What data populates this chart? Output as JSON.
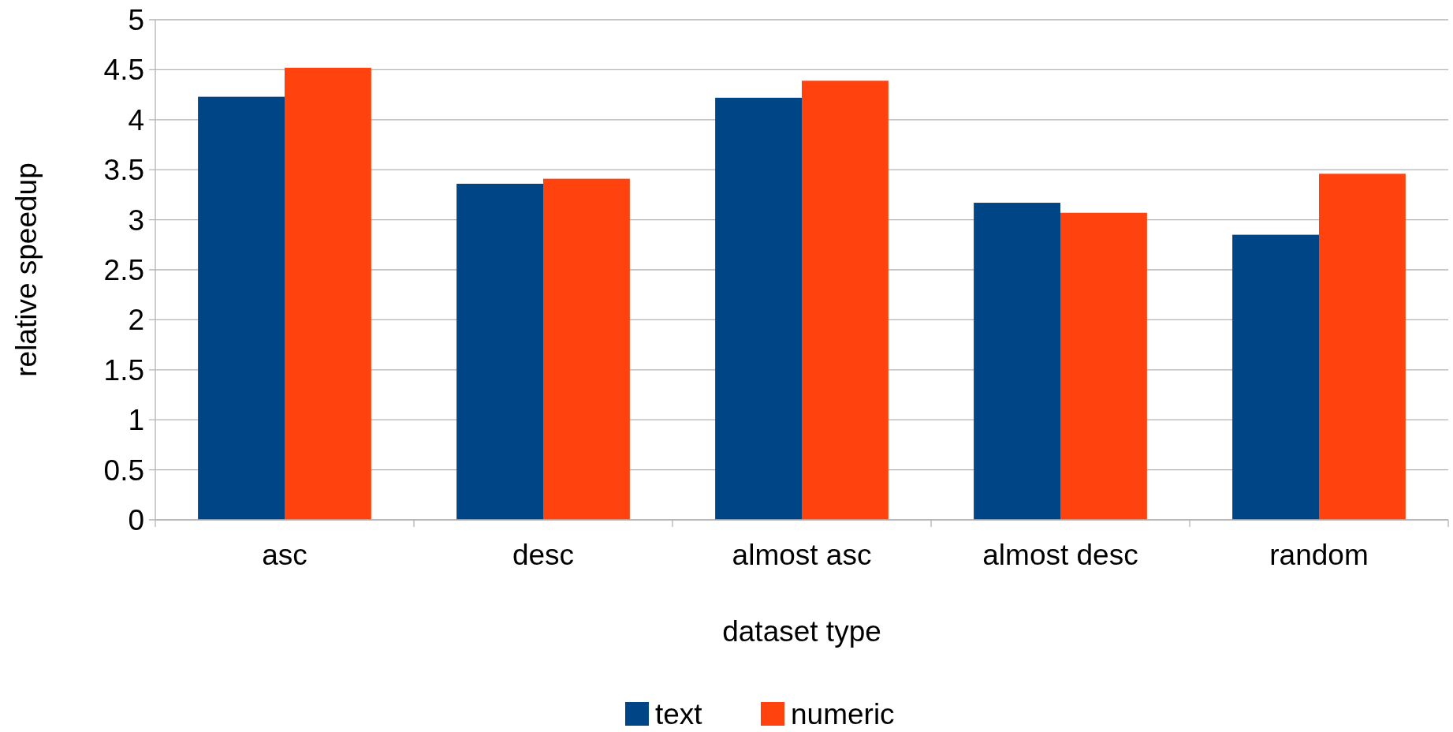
{
  "chart_data": {
    "type": "bar",
    "xlabel": "dataset type",
    "ylabel": "relative speedup",
    "categories": [
      "asc",
      "desc",
      "almost asc",
      "almost desc",
      "random"
    ],
    "series": [
      {
        "name": "text",
        "color": "#004586",
        "values": [
          4.23,
          3.36,
          4.22,
          3.17,
          2.85
        ]
      },
      {
        "name": "numeric",
        "color": "#ff420e",
        "values": [
          4.52,
          3.41,
          4.39,
          3.07,
          3.46
        ]
      }
    ],
    "ylim": [
      0,
      5
    ],
    "yticks": [
      0,
      0.5,
      1,
      1.5,
      2,
      2.5,
      3,
      3.5,
      4,
      4.5,
      5
    ],
    "grid": "y",
    "legend": "bottom"
  }
}
